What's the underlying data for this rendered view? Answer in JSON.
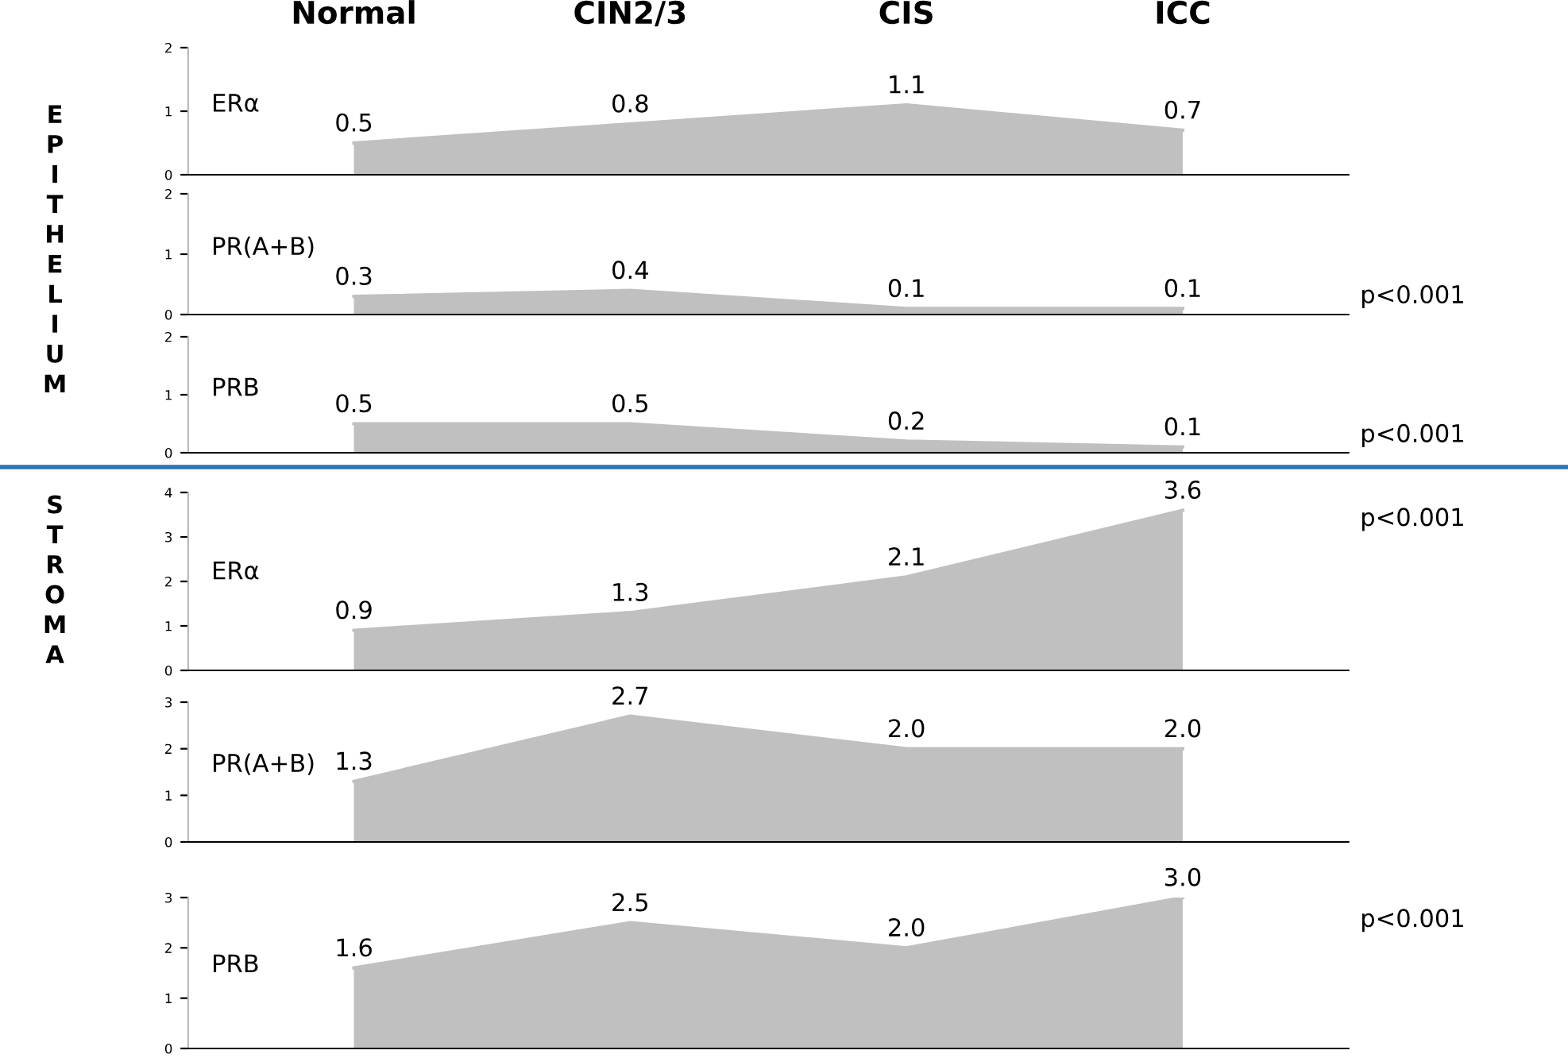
{
  "chart_data": [
    {
      "type": "area",
      "categories": [
        "Normal",
        "CIN2/3",
        "CIS",
        "ICC"
      ],
      "values": [
        0.5,
        0.8,
        1.1,
        0.7
      ],
      "value_labels": [
        "0.5",
        "0.8",
        "1.1",
        "0.7"
      ],
      "color": "#c0c0c0",
      "ylim": [
        0,
        2
      ],
      "yticks": [
        0,
        1,
        2
      ],
      "annotations": [
        "ERα",
        "E\nP\nI\nT\nH\nE\nL\nI\nU\nM"
      ]
    },
    {
      "type": "area",
      "categories": [
        null,
        null,
        null,
        null
      ],
      "values": [
        0.3,
        0.4,
        0.1,
        0.1
      ],
      "value_labels": [
        "0.3",
        "0.4",
        "0.1",
        "0.1"
      ],
      "color": "#c0c0c0",
      "ylim": [
        0,
        2
      ],
      "yticks": [
        0,
        1,
        2
      ],
      "tick_labels": "y",
      "annotations": [
        "PR(A+B)",
        "p<0.001"
      ]
    },
    {
      "type": "area",
      "categories": [
        null,
        null,
        null,
        null
      ],
      "values": [
        0.5,
        0.5,
        0.2,
        0.1
      ],
      "value_labels": [
        "0.5",
        "0.5",
        "0.2",
        "0.1"
      ],
      "color": "#c0c0c0",
      "ylim": [
        0,
        2
      ],
      "yticks": [
        0,
        1,
        2
      ],
      "tick_labels": "y",
      "annotations": [
        "PRB",
        "p<0.001"
      ]
    },
    {
      "type": "area",
      "categories": [
        null,
        null,
        null,
        null
      ],
      "values": [
        0.9,
        1.3,
        2.1,
        3.6
      ],
      "value_labels": [
        "0.9",
        "1.3",
        "2.1",
        "3.6"
      ],
      "color": "#c0c0c0",
      "ylim": [
        0,
        4
      ],
      "yticks": [
        0,
        1,
        2,
        3,
        4
      ],
      "tick_labels": "y",
      "annotations": [
        "ERα",
        "p<0.001",
        "S\nT\nR\nO\nM\nA"
      ]
    },
    {
      "type": "area",
      "categories": [
        null,
        null,
        null,
        null
      ],
      "values": [
        1.3,
        2.7,
        2.0,
        2.0
      ],
      "value_labels": [
        "1.3",
        "2.7",
        "2.0",
        "2.0"
      ],
      "color": "#c0c0c0",
      "ylim": [
        0,
        3
      ],
      "yticks": [
        0,
        1,
        2,
        3
      ],
      "tick_labels": "y",
      "annotations": [
        "PR(A+B)"
      ]
    },
    {
      "type": "area",
      "categories": [
        null,
        null,
        null,
        null
      ],
      "values": [
        1.6,
        2.5,
        2.0,
        3.0
      ],
      "value_labels": [
        "1.6",
        "2.5",
        "2.0",
        "3.0"
      ],
      "color": "#c0c0c0",
      "ylim": [
        0,
        3
      ],
      "yticks": [
        0,
        1,
        2,
        3
      ],
      "tick_labels": "y",
      "annotations": [
        "PRB",
        "p<0.001"
      ]
    }
  ]
}
